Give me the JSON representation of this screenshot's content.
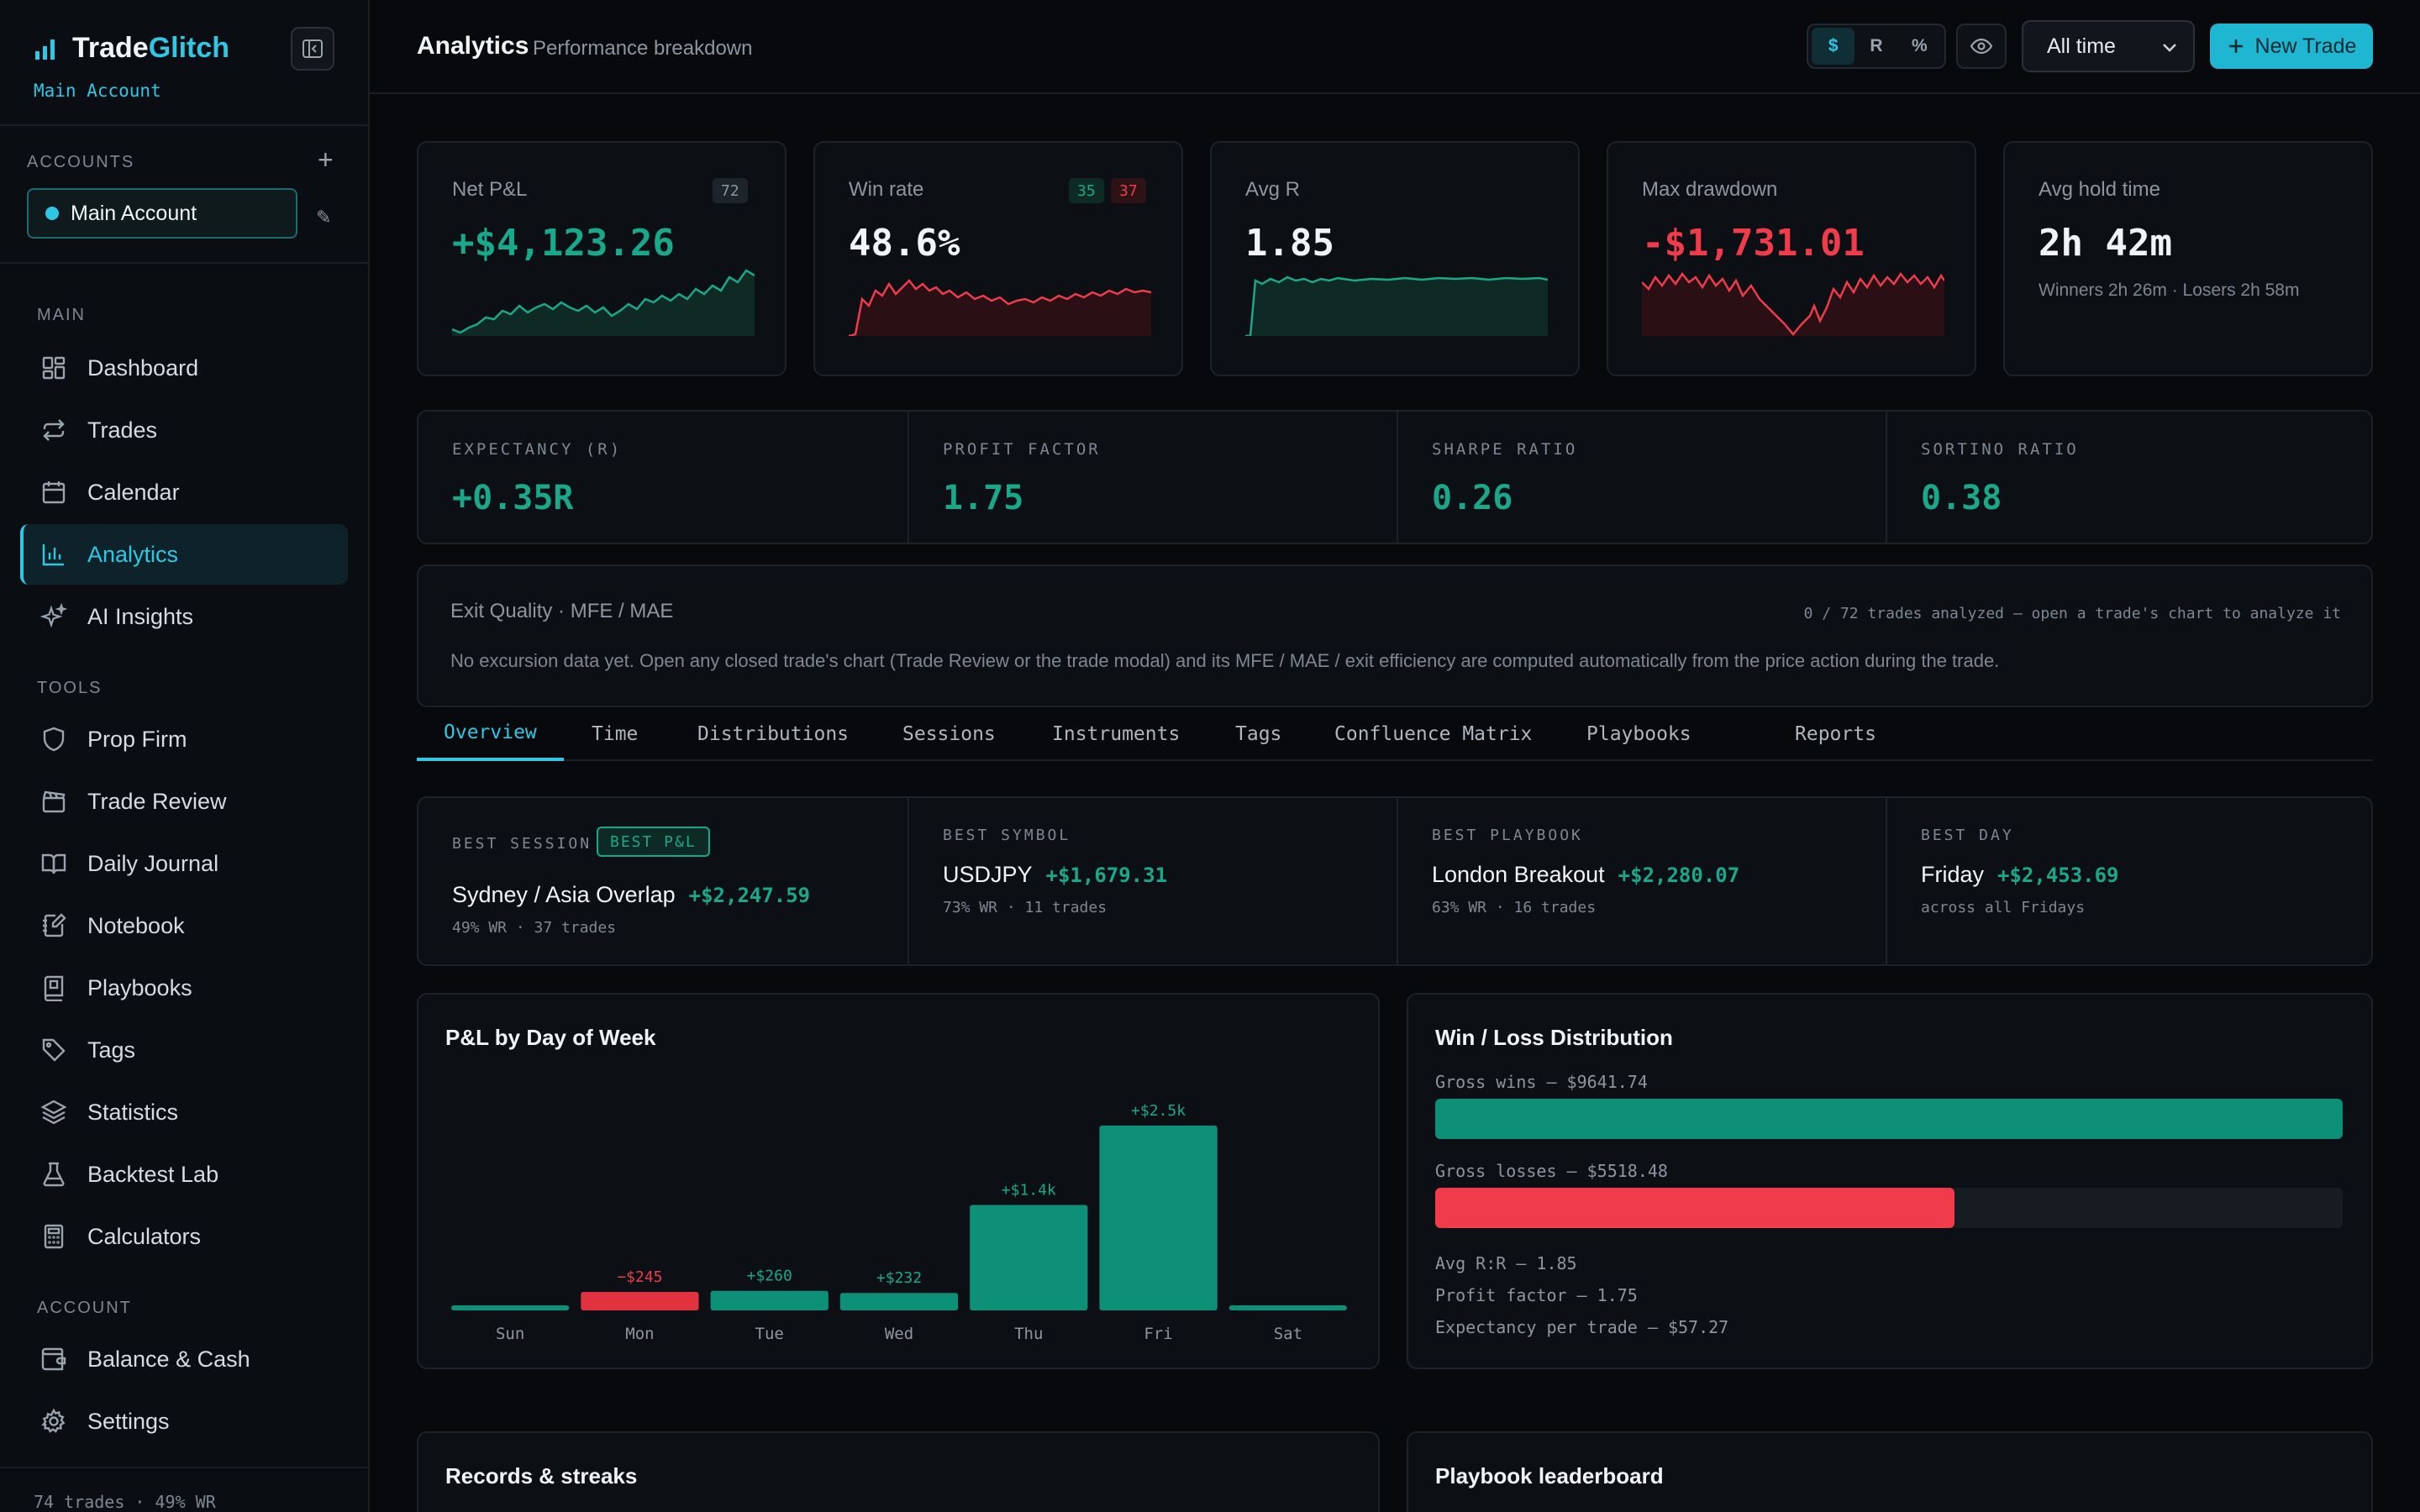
{
  "sidebar": {
    "brand_a": "Trade",
    "brand_b": "Glitch",
    "account_sub": "Main Account",
    "accounts_label": "ACCOUNTS",
    "account_item": "Main Account",
    "sections": {
      "main": "MAIN",
      "tools": "TOOLS",
      "account": "ACCOUNT"
    },
    "main_items": [
      "Dashboard",
      "Trades",
      "Calendar",
      "Analytics",
      "AI Insights"
    ],
    "tools_items": [
      "Prop Firm",
      "Trade Review",
      "Daily Journal",
      "Notebook",
      "Playbooks",
      "Tags",
      "Statistics",
      "Backtest Lab",
      "Calculators"
    ],
    "account_items": [
      "Balance & Cash",
      "Settings"
    ],
    "footer": "74 trades · 49% WR"
  },
  "header": {
    "title": "Analytics",
    "subtitle": "Performance breakdown",
    "units": [
      "$",
      "R",
      "%"
    ],
    "range": "All time",
    "new_trade": "New Trade"
  },
  "kpis": [
    {
      "label": "Net P&L",
      "value": "+$4,123.26",
      "badges": [
        "72"
      ]
    },
    {
      "label": "Win rate",
      "value": "48.6%",
      "badges": [
        "35",
        "37"
      ]
    },
    {
      "label": "Avg R",
      "value": "1.85",
      "badges": []
    },
    {
      "label": "Max drawdown",
      "value": "-$1,731.01",
      "badges": []
    },
    {
      "label": "Avg hold time",
      "value": "2h 42m",
      "sub": "Winners 2h 26m · Losers 2h 58m"
    }
  ],
  "ratios": [
    {
      "label": "EXPECTANCY (R)",
      "value": "+0.35R"
    },
    {
      "label": "PROFIT FACTOR",
      "value": "1.75"
    },
    {
      "label": "SHARPE RATIO",
      "value": "0.26"
    },
    {
      "label": "SORTINO RATIO",
      "value": "0.38"
    }
  ],
  "exit_quality": {
    "title": "Exit Quality · MFE / MAE",
    "status": "0 / 72 trades analyzed — open a trade's chart to analyze it",
    "message": "No excursion data yet. Open any closed trade's chart (Trade Review or the trade modal) and its MFE / MAE / exit efficiency are computed automatically from the price action during the trade."
  },
  "tabs": [
    "Overview",
    "Time",
    "Distributions",
    "Sessions",
    "Instruments",
    "Tags",
    "Confluence Matrix",
    "Playbooks",
    "Reports"
  ],
  "best": [
    {
      "label": "BEST SESSION",
      "badge": "BEST P&L",
      "name": "Sydney / Asia Overlap",
      "pnl": "+$2,247.59",
      "meta": "49% WR · 37 trades"
    },
    {
      "label": "BEST SYMBOL",
      "name": "USDJPY",
      "pnl": "+$1,679.31",
      "meta": "73% WR · 11 trades"
    },
    {
      "label": "BEST PLAYBOOK",
      "name": "London Breakout",
      "pnl": "+$2,280.07",
      "meta": "63% WR · 16 trades"
    },
    {
      "label": "BEST DAY",
      "name": "Friday",
      "pnl": "+$2,453.69",
      "meta": "across all Fridays"
    }
  ],
  "dow_chart": {
    "title": "P&L by Day of Week"
  },
  "chart_data": {
    "type": "bar",
    "categories": [
      "Sun",
      "Mon",
      "Tue",
      "Wed",
      "Thu",
      "Fri",
      "Sat"
    ],
    "values": [
      0,
      -245,
      260,
      232,
      1400,
      2453.69,
      0
    ],
    "labels": [
      "",
      "−$245",
      "+$260",
      "+$232",
      "+$1.4k",
      "+$2.5k",
      ""
    ],
    "colors": {
      "pos": "#0e8f78",
      "neg": "#e0323f"
    }
  },
  "winloss": {
    "title": "Win / Loss Distribution",
    "wins_label": "Gross wins — $9641.74",
    "losses_label": "Gross losses — $5518.48",
    "wins_value": 9641.74,
    "losses_value": 5518.48,
    "stats": [
      "Avg R:R — 1.85",
      "Profit factor — 1.75",
      "Expectancy per trade — $57.27"
    ]
  },
  "bottom": {
    "records": "Records & streaks",
    "leaderboard": "Playbook leaderboard"
  }
}
